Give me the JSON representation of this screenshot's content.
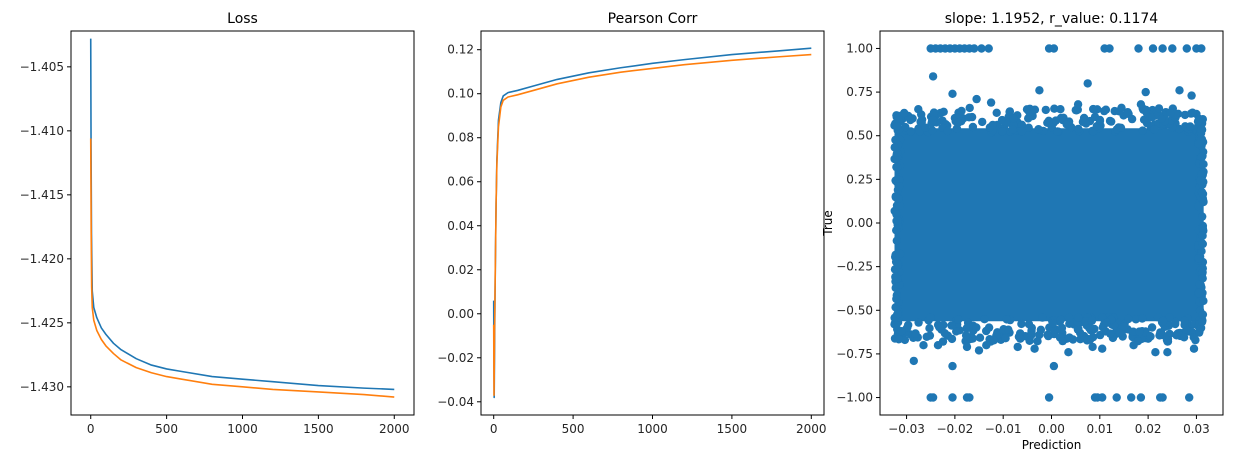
{
  "colors": {
    "series1": "#1f77b4",
    "series2": "#ff7f0e"
  },
  "chart_data": [
    {
      "type": "line",
      "title": "Loss",
      "xlabel": "",
      "ylabel": "",
      "xlim": [
        -130,
        2130
      ],
      "ylim": [
        -1.4322,
        -1.4022
      ],
      "xticks": [
        0,
        500,
        1000,
        1500,
        2000
      ],
      "xtick_labels": [
        "0",
        "500",
        "1000",
        "1500",
        "2000"
      ],
      "yticks": [
        -1.43,
        -1.425,
        -1.42,
        -1.415,
        -1.41,
        -1.405
      ],
      "ytick_labels": [
        "−1.430",
        "−1.425",
        "−1.420",
        "−1.415",
        "−1.410",
        "−1.405"
      ],
      "grid": false,
      "series": [
        {
          "color": "#1f77b4",
          "points": [
            [
              0,
              -1.4028
            ],
            [
              2,
              -1.4105
            ],
            [
              5,
              -1.418
            ],
            [
              10,
              -1.4225
            ],
            [
              20,
              -1.4238
            ],
            [
              40,
              -1.4246
            ],
            [
              70,
              -1.4254
            ],
            [
              100,
              -1.4259
            ],
            [
              150,
              -1.4266
            ],
            [
              200,
              -1.4271
            ],
            [
              300,
              -1.4278
            ],
            [
              400,
              -1.4283
            ],
            [
              500,
              -1.4286
            ],
            [
              600,
              -1.4288
            ],
            [
              800,
              -1.4292
            ],
            [
              1000,
              -1.4294
            ],
            [
              1200,
              -1.4296
            ],
            [
              1500,
              -1.4299
            ],
            [
              1800,
              -1.4301
            ],
            [
              2000,
              -1.4302
            ]
          ]
        },
        {
          "color": "#ff7f0e",
          "points": [
            [
              0,
              -1.4106
            ],
            [
              3,
              -1.418
            ],
            [
              6,
              -1.4222
            ],
            [
              10,
              -1.4238
            ],
            [
              20,
              -1.4248
            ],
            [
              40,
              -1.4256
            ],
            [
              70,
              -1.4263
            ],
            [
              100,
              -1.4268
            ],
            [
              150,
              -1.4274
            ],
            [
              200,
              -1.4279
            ],
            [
              300,
              -1.4285
            ],
            [
              400,
              -1.4289
            ],
            [
              500,
              -1.4292
            ],
            [
              600,
              -1.4294
            ],
            [
              800,
              -1.4298
            ],
            [
              1000,
              -1.43
            ],
            [
              1200,
              -1.4302
            ],
            [
              1500,
              -1.4304
            ],
            [
              1800,
              -1.4306
            ],
            [
              2000,
              -1.4308
            ]
          ]
        }
      ]
    },
    {
      "type": "line",
      "title": "Pearson Corr",
      "xlabel": "",
      "ylabel": "",
      "xlim": [
        -80,
        2080
      ],
      "ylim": [
        -0.046,
        0.1285
      ],
      "xticks": [
        0,
        500,
        1000,
        1500,
        2000
      ],
      "xtick_labels": [
        "0",
        "500",
        "1000",
        "1500",
        "2000"
      ],
      "yticks": [
        -0.04,
        -0.02,
        0.0,
        0.02,
        0.04,
        0.06,
        0.08,
        0.1,
        0.12
      ],
      "ytick_labels": [
        "−0.04",
        "−0.02",
        "0.00",
        "0.02",
        "0.04",
        "0.06",
        "0.08",
        "0.10",
        "0.12"
      ],
      "grid": false,
      "series": [
        {
          "color": "#1f77b4",
          "points": [
            [
              0,
              0.006
            ],
            [
              1,
              -0.015
            ],
            [
              3,
              -0.038
            ],
            [
              6,
              -0.01
            ],
            [
              10,
              0.02
            ],
            [
              15,
              0.05
            ],
            [
              20,
              0.07
            ],
            [
              30,
              0.088
            ],
            [
              45,
              0.096
            ],
            [
              60,
              0.099
            ],
            [
              90,
              0.1005
            ],
            [
              150,
              0.1015
            ],
            [
              250,
              0.1035
            ],
            [
              400,
              0.1065
            ],
            [
              600,
              0.1095
            ],
            [
              800,
              0.1118
            ],
            [
              1000,
              0.1138
            ],
            [
              1200,
              0.1155
            ],
            [
              1500,
              0.1178
            ],
            [
              1800,
              0.1195
            ],
            [
              2000,
              0.1207
            ]
          ]
        },
        {
          "color": "#ff7f0e",
          "points": [
            [
              0,
              -0.005
            ],
            [
              2,
              -0.037
            ],
            [
              5,
              -0.01
            ],
            [
              10,
              0.02
            ],
            [
              15,
              0.05
            ],
            [
              20,
              0.068
            ],
            [
              30,
              0.085
            ],
            [
              45,
              0.094
            ],
            [
              60,
              0.097
            ],
            [
              90,
              0.0985
            ],
            [
              150,
              0.0995
            ],
            [
              250,
              0.1015
            ],
            [
              400,
              0.1045
            ],
            [
              600,
              0.1075
            ],
            [
              800,
              0.1098
            ],
            [
              1000,
              0.1115
            ],
            [
              1200,
              0.1132
            ],
            [
              1500,
              0.1152
            ],
            [
              1800,
              0.1168
            ],
            [
              2000,
              0.1178
            ]
          ]
        }
      ]
    },
    {
      "type": "scatter",
      "title": "slope: 1.1952, r_value: 0.1174",
      "xlabel": "Prediction",
      "ylabel": "True",
      "xlim": [
        -0.0355,
        0.0355
      ],
      "ylim": [
        -1.1,
        1.1
      ],
      "xticks": [
        -0.03,
        -0.02,
        -0.01,
        0.0,
        0.01,
        0.02,
        0.03
      ],
      "xtick_labels": [
        "−0.03",
        "−0.02",
        "−0.01",
        "0.00",
        "0.01",
        "0.02",
        "0.03"
      ],
      "yticks": [
        -1.0,
        -0.75,
        -0.5,
        -0.25,
        0.0,
        0.25,
        0.5,
        0.75,
        1.0
      ],
      "ytick_labels": [
        "−1.00",
        "−0.75",
        "−0.50",
        "−0.25",
        "0.00",
        "0.25",
        "0.50",
        "0.75",
        "1.00"
      ],
      "grid": false,
      "marker_color": "#1f77b4",
      "dense_region": {
        "x_range": [
          -0.0325,
          0.0315
        ],
        "y_range": [
          -0.62,
          0.6
        ]
      },
      "points": [
        [
          -0.025,
          1.0
        ],
        [
          -0.024,
          1.0
        ],
        [
          -0.023,
          1.0
        ],
        [
          -0.022,
          1.0
        ],
        [
          -0.021,
          1.0
        ],
        [
          -0.02,
          1.0
        ],
        [
          -0.019,
          1.0
        ],
        [
          -0.018,
          1.0
        ],
        [
          -0.017,
          1.0
        ],
        [
          -0.016,
          1.0
        ],
        [
          -0.0145,
          1.0
        ],
        [
          -0.013,
          1.0
        ],
        [
          -0.0005,
          1.0
        ],
        [
          0.0005,
          1.0
        ],
        [
          0.011,
          1.0
        ],
        [
          0.012,
          1.0
        ],
        [
          0.018,
          1.0
        ],
        [
          0.021,
          1.0
        ],
        [
          0.023,
          1.0
        ],
        [
          0.025,
          1.0
        ],
        [
          0.028,
          1.0
        ],
        [
          0.03,
          1.0
        ],
        [
          0.031,
          1.0
        ],
        [
          -0.025,
          -1.0
        ],
        [
          -0.0245,
          -1.0
        ],
        [
          -0.0205,
          -1.0
        ],
        [
          -0.0175,
          -1.0
        ],
        [
          -0.017,
          -1.0
        ],
        [
          -0.0005,
          -1.0
        ],
        [
          0.009,
          -1.0
        ],
        [
          0.0095,
          -1.0
        ],
        [
          0.0105,
          -1.0
        ],
        [
          0.0135,
          -1.0
        ],
        [
          0.0165,
          -1.0
        ],
        [
          0.0185,
          -1.0
        ],
        [
          0.0225,
          -1.0
        ],
        [
          0.023,
          -1.0
        ],
        [
          0.0285,
          -1.0
        ],
        [
          -0.0245,
          0.84
        ],
        [
          -0.0205,
          0.74
        ],
        [
          0.0075,
          0.8
        ],
        [
          0.0195,
          0.75
        ],
        [
          0.0265,
          0.76
        ],
        [
          0.029,
          0.73
        ],
        [
          -0.0155,
          0.71
        ],
        [
          -0.0125,
          0.69
        ],
        [
          -0.0025,
          0.76
        ],
        [
          0.0055,
          0.68
        ],
        [
          0.0185,
          0.68
        ],
        [
          -0.0305,
          0.63
        ],
        [
          0.0145,
          0.66
        ],
        [
          -0.0265,
          -0.7
        ],
        [
          -0.0285,
          -0.79
        ],
        [
          -0.0235,
          -0.7
        ],
        [
          -0.0205,
          -0.82
        ],
        [
          -0.0175,
          -0.71
        ],
        [
          -0.015,
          -0.73
        ],
        [
          -0.0135,
          -0.7
        ],
        [
          -0.007,
          -0.71
        ],
        [
          -0.0035,
          -0.72
        ],
        [
          0.0005,
          -0.82
        ],
        [
          0.0035,
          -0.74
        ],
        [
          0.0085,
          -0.71
        ],
        [
          0.0105,
          -0.72
        ],
        [
          0.017,
          -0.7
        ],
        [
          0.024,
          -0.74
        ],
        [
          0.0295,
          -0.72
        ],
        [
          -0.031,
          -0.62
        ],
        [
          -0.0095,
          -0.66
        ],
        [
          0.0205,
          -0.65
        ],
        [
          0.0215,
          -0.74
        ]
      ]
    }
  ]
}
